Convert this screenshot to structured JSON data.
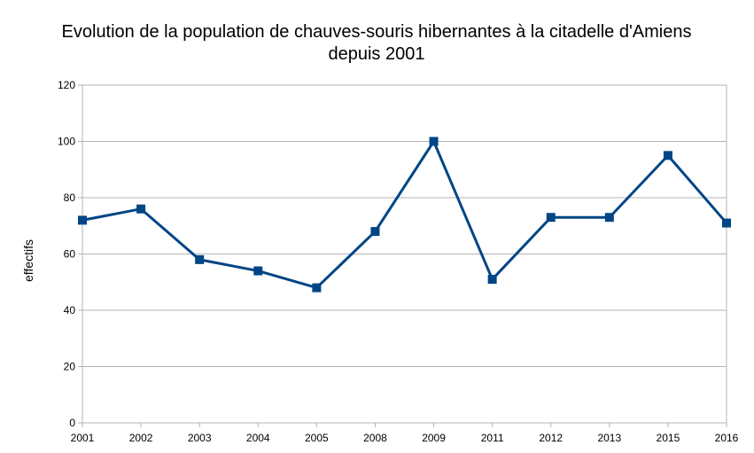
{
  "chart_data": {
    "type": "line",
    "title_lines": [
      "Evolution de la population de chauves-souris hibernantes à la citadelle d'Amiens",
      "depuis 2001"
    ],
    "xlabel": "",
    "ylabel": "effectifs",
    "categories": [
      "2001",
      "2002",
      "2003",
      "2004",
      "2005",
      "2008",
      "2009",
      "2011",
      "2012",
      "2013",
      "2015",
      "2016"
    ],
    "series": [
      {
        "values": [
          72,
          76,
          58,
          54,
          48,
          68,
          100,
          51,
          73,
          73,
          95,
          71
        ]
      }
    ],
    "ylim": [
      0,
      120
    ],
    "yticks": [
      0,
      20,
      40,
      60,
      80,
      100,
      120
    ],
    "grid": true,
    "legend": "none",
    "line_color": "#004586",
    "grid_color": "#b3b3b3"
  }
}
